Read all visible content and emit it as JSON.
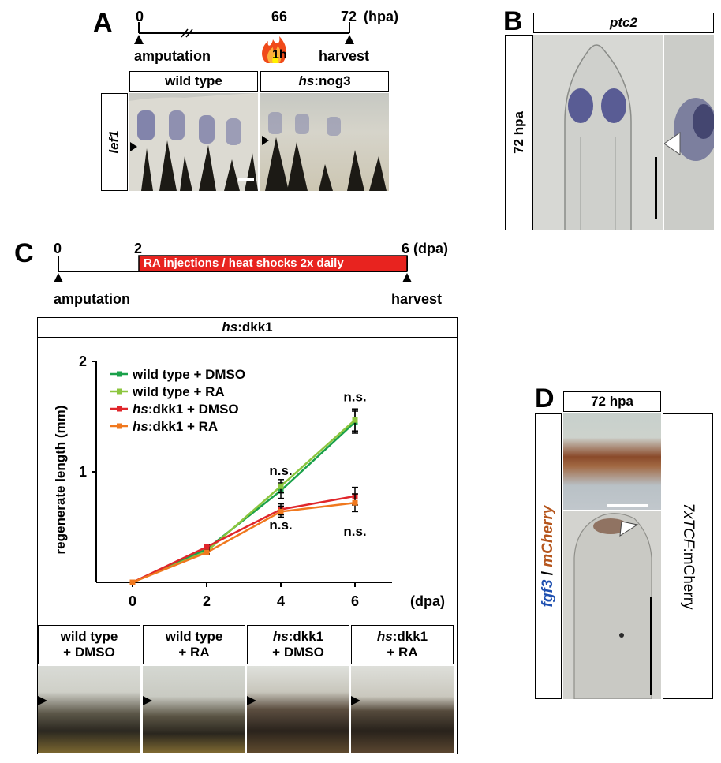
{
  "panelA": {
    "letter": "A",
    "t0": "0",
    "t66": "66",
    "t72": "72",
    "unit": "(hpa)",
    "amputation": "amputation",
    "harvest": "harvest",
    "heat": "1h",
    "col1": "wild type",
    "col2_italic": "hs",
    "col2_rest": ":nog3",
    "row": "lef1"
  },
  "panelB": {
    "letter": "B",
    "title": "ptc2",
    "row": "72 hpa"
  },
  "panelC": {
    "letter": "C",
    "t0": "0",
    "t2": "2",
    "t6": "6",
    "unit": "(dpa)",
    "bar": "RA injections / heat shocks 2x daily",
    "amputation": "amputation",
    "harvest": "harvest",
    "header_italic": "hs",
    "header_rest": ":dkk1",
    "ns": "n.s.",
    "thumbs": [
      {
        "line1_italic": "",
        "line1_rest": "wild type",
        "line2": "+ DMSO"
      },
      {
        "line1_italic": "",
        "line1_rest": "wild type",
        "line2": "+ RA"
      },
      {
        "line1_italic": "hs",
        "line1_rest": ":dkk1",
        "line2": "+ DMSO"
      },
      {
        "line1_italic": "hs",
        "line1_rest": ":dkk1",
        "line2": "+ RA"
      }
    ]
  },
  "panelD": {
    "letter": "D",
    "title": "72 hpa",
    "left_a": "fgf3",
    "left_sep": " / ",
    "left_b": "mCherry",
    "right_italic": "7xTCF",
    "right_rest": ":mCherry"
  },
  "chart_data": {
    "type": "line",
    "xlabel": "(dpa)",
    "ylabel": "regenerate length (mm)",
    "x": [
      0,
      2,
      4,
      6
    ],
    "xticks": [
      "0",
      "2",
      "4",
      "6"
    ],
    "yticks": [
      "1",
      "2"
    ],
    "ylim": [
      0,
      2
    ],
    "legend_position": "top-left",
    "series": [
      {
        "name": "wild type + DMSO",
        "italic": "",
        "rest": "wild type + DMSO",
        "color": "#1aa14a",
        "values": [
          0,
          0.3,
          0.83,
          1.45
        ],
        "err": [
          0,
          0.02,
          0.07,
          0.1
        ]
      },
      {
        "name": "wild type + RA",
        "italic": "",
        "rest": "wild type + RA",
        "color": "#8cc63f",
        "values": [
          0,
          0.28,
          0.87,
          1.47
        ],
        "err": [
          0,
          0.02,
          0.06,
          0.1
        ]
      },
      {
        "name": "hs:dkk1 + DMSO",
        "italic": "hs",
        "rest": ":dkk1 + DMSO",
        "color": "#e0262b",
        "values": [
          0,
          0.32,
          0.66,
          0.78
        ],
        "err": [
          0,
          0.02,
          0.05,
          0.08
        ]
      },
      {
        "name": "hs:dkk1 + RA",
        "italic": "hs",
        "rest": ":dkk1 + RA",
        "color": "#f0781e",
        "values": [
          0,
          0.27,
          0.64,
          0.72
        ],
        "err": [
          0,
          0.02,
          0.05,
          0.08
        ]
      }
    ]
  }
}
